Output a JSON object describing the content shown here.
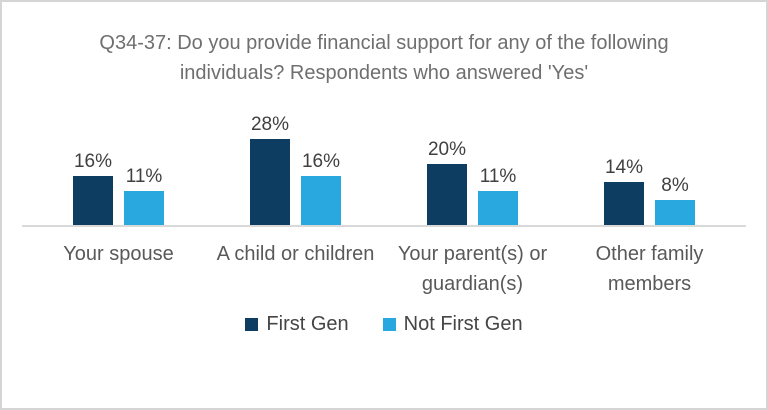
{
  "chart_data": {
    "type": "bar",
    "title": "Q34-37: Do you provide financial support for any of the following individuals? Respondents who answered 'Yes'",
    "categories": [
      "Your spouse",
      "A child or children",
      "Your parent(s) or guardian(s)",
      "Other family members"
    ],
    "series": [
      {
        "name": "First Gen",
        "color": "#0d3d61",
        "values": [
          16,
          28,
          20,
          14
        ]
      },
      {
        "name": "Not First Gen",
        "color": "#29a8e0",
        "values": [
          11,
          16,
          11,
          8
        ]
      }
    ],
    "value_suffix": "%",
    "data_labels": true,
    "ylim": [
      0,
      30
    ],
    "grid": false,
    "axis_line_color": "#d9d9d9",
    "legend_position": "bottom"
  },
  "colors": {
    "card_border": "#d5d5d5",
    "title_text": "#6f6f6f",
    "category_text": "#595959",
    "data_label_text": "#404040",
    "legend_text": "#454545"
  }
}
